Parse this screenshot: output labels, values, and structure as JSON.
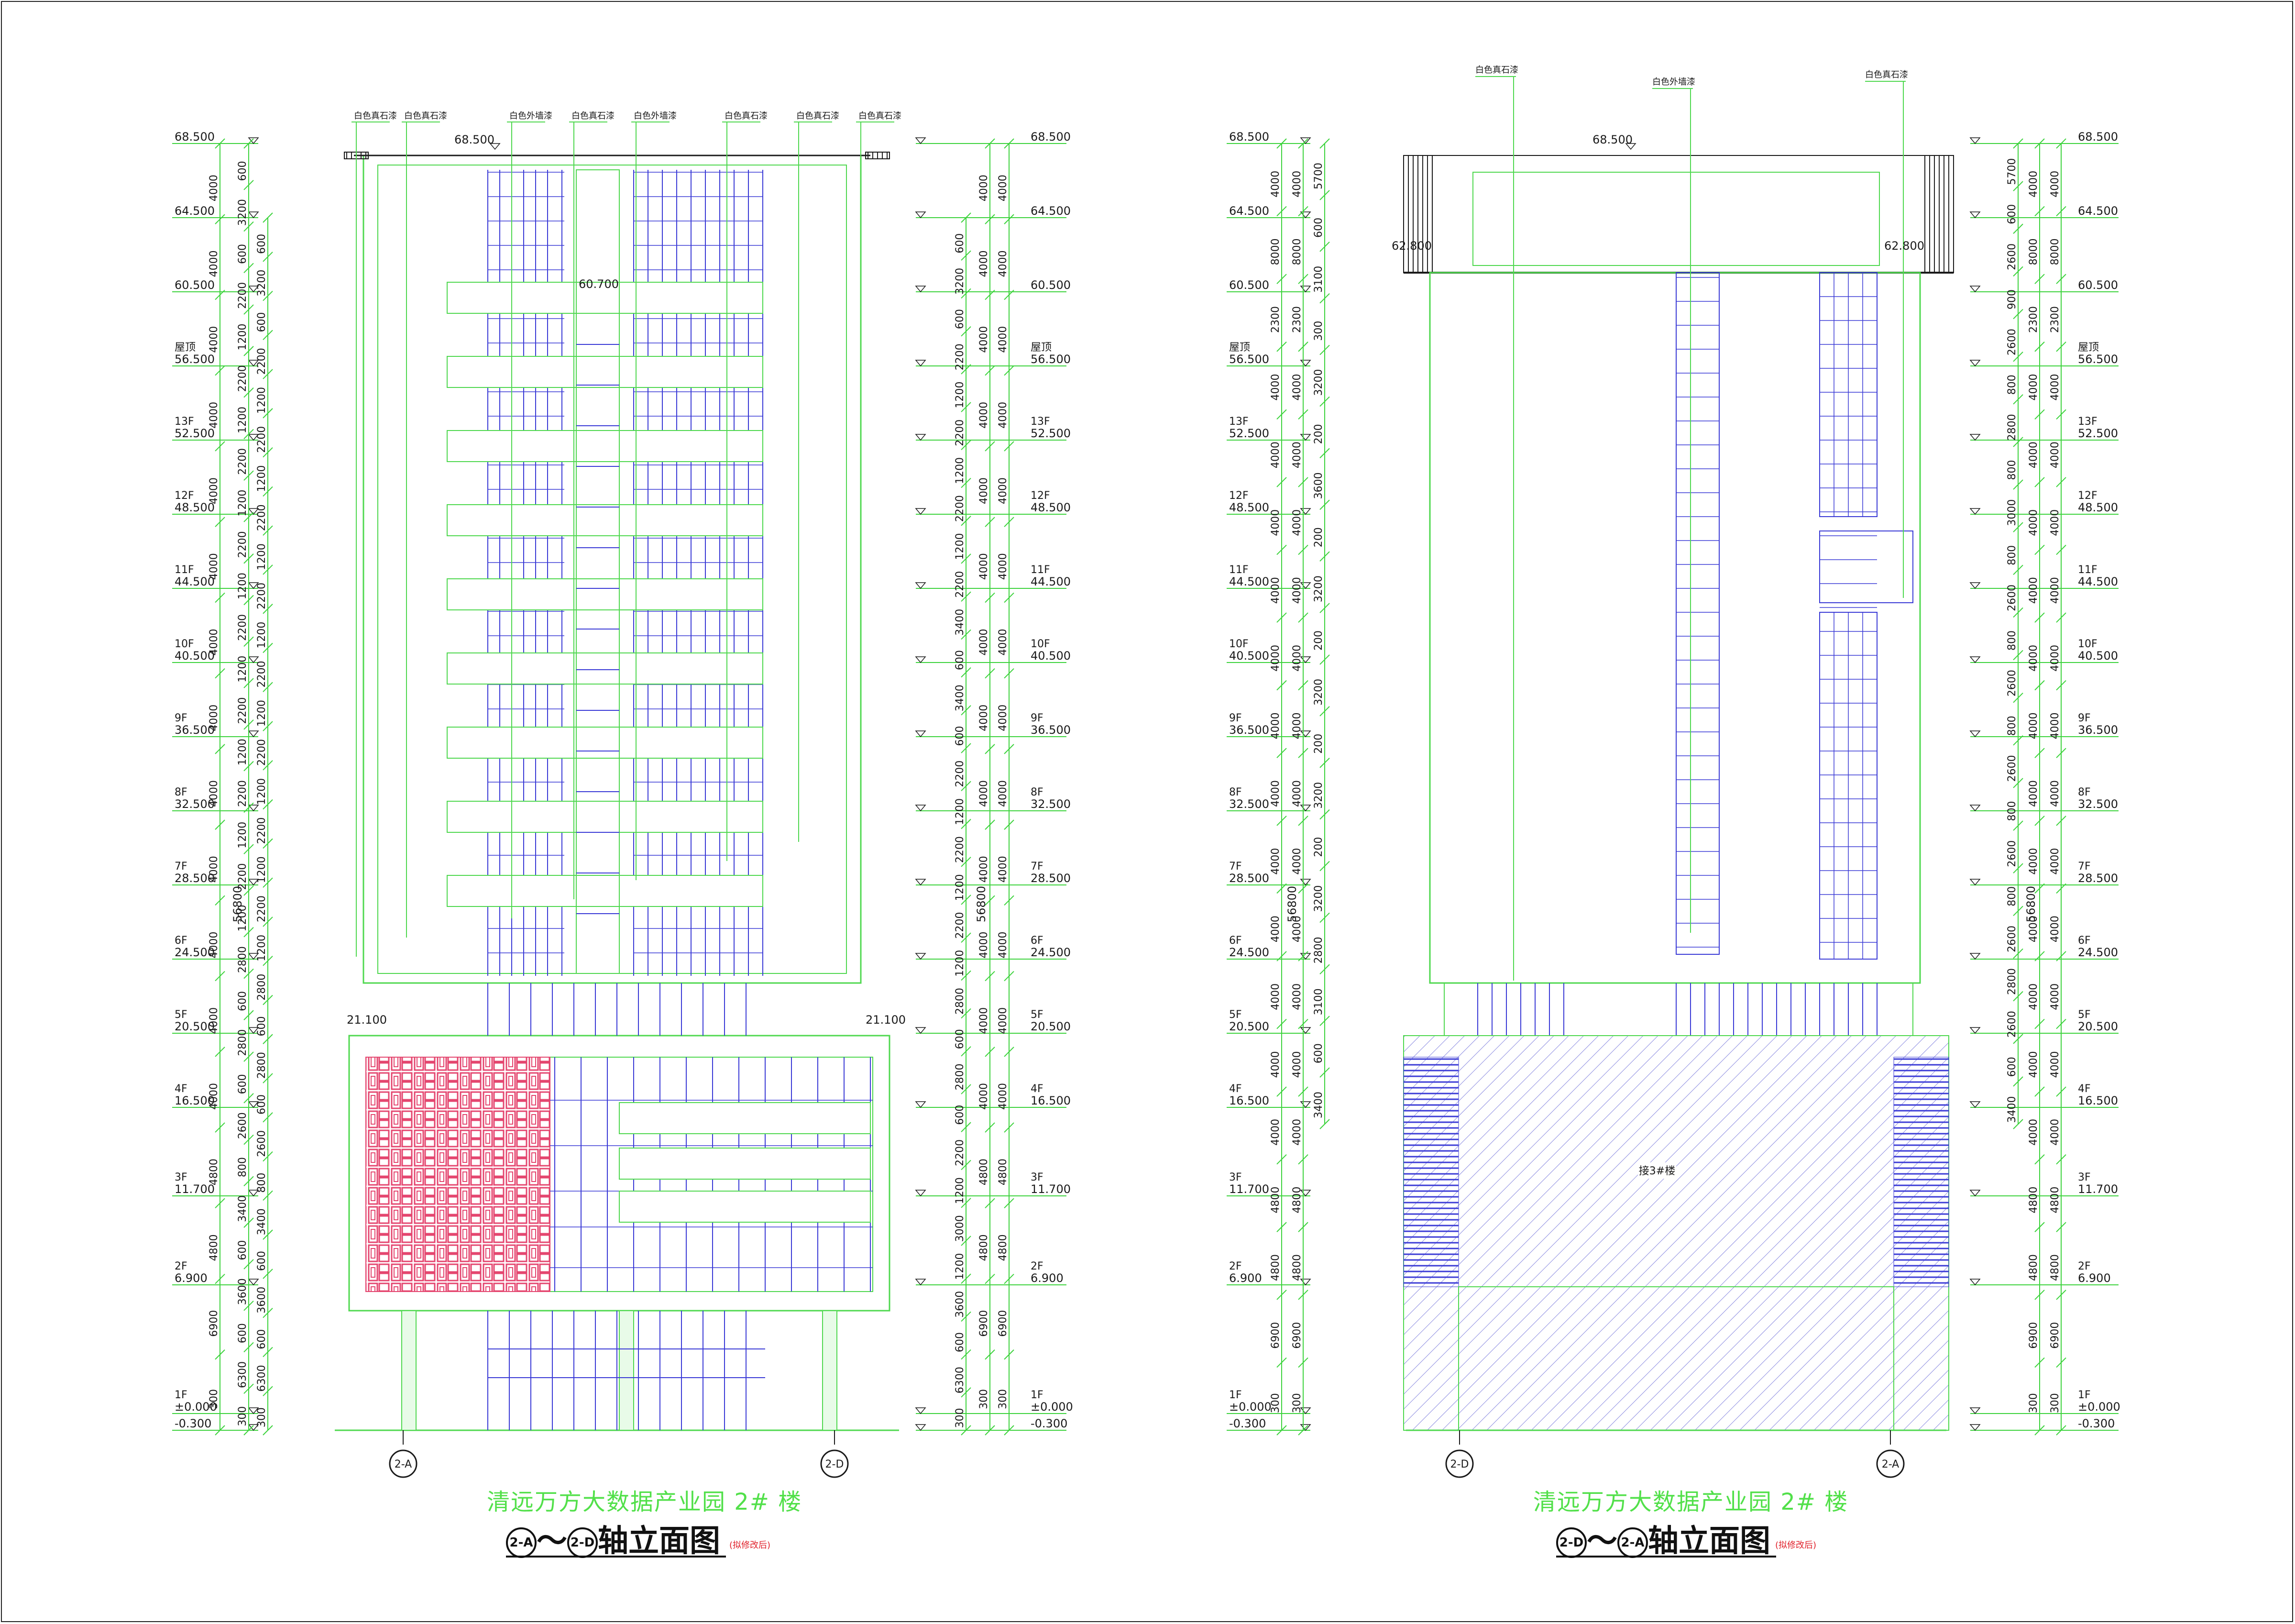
{
  "colors": {
    "dim_green": "#3dd33d",
    "wall_green": "#4fd84f",
    "window_blue": "#3b3bd6",
    "pink_screen": "#e4466f",
    "hatch": "#7a7ae0",
    "text_black": "#1a1a1a",
    "note_red": "#e0202a"
  },
  "levels": [
    {
      "floor": "",
      "elev": "68.500"
    },
    {
      "floor": "",
      "elev": "64.500"
    },
    {
      "floor": "",
      "elev": "60.500"
    },
    {
      "floor": "屋顶",
      "elev": "56.500"
    },
    {
      "floor": "13F",
      "elev": "52.500"
    },
    {
      "floor": "12F",
      "elev": "48.500"
    },
    {
      "floor": "11F",
      "elev": "44.500"
    },
    {
      "floor": "10F",
      "elev": "40.500"
    },
    {
      "floor": "9F",
      "elev": "36.500"
    },
    {
      "floor": "8F",
      "elev": "32.500"
    },
    {
      "floor": "7F",
      "elev": "28.500"
    },
    {
      "floor": "6F",
      "elev": "24.500"
    },
    {
      "floor": "5F",
      "elev": "20.500"
    },
    {
      "floor": "4F",
      "elev": "16.500"
    },
    {
      "floor": "3F",
      "elev": "11.700"
    },
    {
      "floor": "2F",
      "elev": "6.900"
    },
    {
      "floor": "1F",
      "elev": "±0.000"
    },
    {
      "floor": "",
      "elev": "-0.300"
    }
  ],
  "left_elevation": {
    "dims_outer": [
      "4000",
      "4000",
      "4000",
      "4000",
      "4000",
      "4000",
      "4000",
      "4000",
      "4000",
      "4000",
      "4000",
      "4000",
      "4000",
      "4800",
      "4800",
      "6900",
      "300"
    ],
    "dims_mid": [
      "600",
      "3200",
      "600",
      "2200",
      "1200",
      "2200",
      "1200",
      "2200",
      "1200",
      "2200",
      "1200",
      "2200",
      "1200",
      "2200",
      "1200",
      "2200",
      "1200",
      "2200",
      "1200",
      "2800",
      "600",
      "2800",
      "600",
      "2600",
      "800",
      "3400",
      "600",
      "3600",
      "600",
      "6300",
      "300"
    ],
    "dims_right_outer": [
      "600",
      "3200",
      "600",
      "2200",
      "1200",
      "2200",
      "1200",
      "2200",
      "1200",
      "2200",
      "3400",
      "600",
      "3400",
      "600",
      "2200",
      "1200",
      "2200",
      "1200",
      "2200",
      "1200",
      "2800",
      "600",
      "2800",
      "600",
      "2200",
      "1200",
      "3000",
      "1200",
      "3600",
      "600",
      "6300",
      "300"
    ],
    "dims_right_mid": [
      "4000",
      "4000",
      "4000",
      "4000",
      "4000",
      "4000",
      "4000",
      "4000",
      "4000",
      "4000",
      "4000",
      "4000",
      "4000",
      "4800",
      "4800",
      "6900",
      "300"
    ],
    "total": "56800",
    "callouts": [
      "白色真石漆",
      "白色真石漆",
      "白色外墙漆",
      "白色真石漆",
      "白色外墙漆",
      "白色真石漆",
      "白色真石漆",
      "白色真石漆"
    ],
    "marks": [
      "68.500",
      "60.700",
      "21.100",
      "21.100"
    ],
    "axes": [
      "2-A",
      "2-D"
    ],
    "project_title": "清远万方大数据产业园 2# 楼",
    "drawing_title_axis_a": "2-A",
    "drawing_title_tilde": "～",
    "drawing_title_axis_b": "2-D",
    "drawing_title_text": "轴立面图",
    "note": "(拟修改后)"
  },
  "right_elevation": {
    "dims_outer": [
      "4000",
      "8000",
      "2300",
      "4000",
      "4000",
      "4000",
      "4000",
      "4000",
      "4000",
      "4000",
      "4000",
      "4000",
      "4000",
      "4000",
      "4000",
      "4800",
      "4800",
      "6900",
      "300"
    ],
    "dims_mid": [
      "5700",
      "600",
      "3100",
      "300",
      "3200",
      "200",
      "3600",
      "200",
      "3200",
      "200",
      "3200",
      "200",
      "3200",
      "200",
      "3200",
      "2800",
      "3100",
      "600",
      "3400"
    ],
    "dims_right": [
      "5700",
      "600",
      "2600",
      "900",
      "2600",
      "800",
      "2800",
      "800",
      "3000",
      "800",
      "2600",
      "800",
      "2600",
      "800",
      "2600",
      "800",
      "2600",
      "800",
      "2600",
      "2800",
      "2600",
      "600",
      "3400"
    ],
    "dims_right_outer": [
      "4000",
      "8000",
      "2300",
      "4000",
      "4000",
      "4000",
      "4000",
      "4000",
      "4000",
      "4000",
      "4000",
      "4000",
      "4000",
      "4000",
      "4000",
      "4800",
      "4800",
      "6900",
      "300"
    ],
    "total": "56800",
    "callouts": [
      "白色真石漆",
      "白色外墙漆",
      "白色真石漆"
    ],
    "marks": [
      "68.500",
      "62.800",
      "62.800"
    ],
    "adjacent_label": "接3#楼",
    "axes": [
      "2-D",
      "2-A"
    ],
    "project_title": "清远万方大数据产业园 2# 楼",
    "drawing_title_axis_a": "2-D",
    "drawing_title_tilde": "～",
    "drawing_title_axis_b": "2-A",
    "drawing_title_text": "轴立面图",
    "note": "(拟修改后)"
  }
}
